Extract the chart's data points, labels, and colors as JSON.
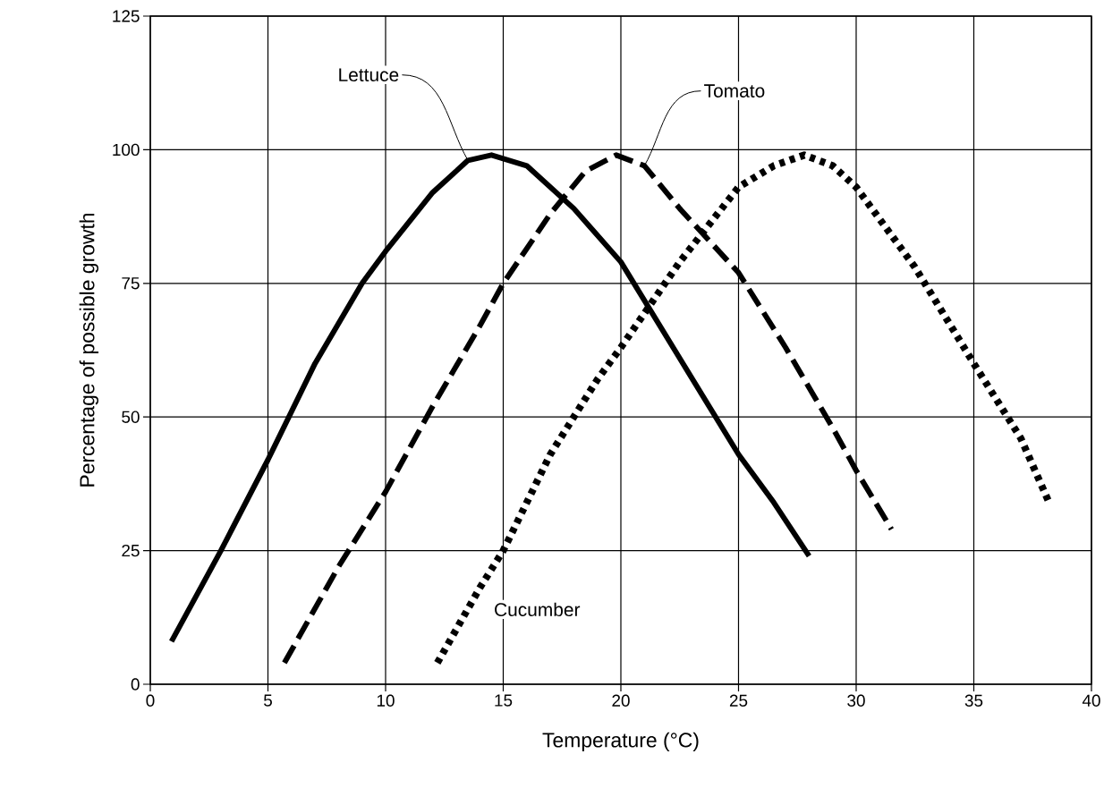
{
  "chart_data": {
    "type": "line",
    "xlabel": "Temperature (°C)",
    "ylabel": "Percentage of possible growth",
    "xlim": [
      0,
      40
    ],
    "ylim": [
      0,
      125
    ],
    "xticks": [
      0,
      5,
      10,
      15,
      20,
      25,
      30,
      35,
      40
    ],
    "yticks": [
      0,
      25,
      50,
      75,
      100,
      125
    ],
    "grid": true,
    "legend": false,
    "marker": "none",
    "series": [
      {
        "name": "Lettuce",
        "color": "#000000",
        "line_style": "solid",
        "x": [
          0.9,
          3,
          5,
          7,
          9,
          10,
          12,
          13.5,
          14.5,
          16,
          18,
          20,
          22.5,
          25,
          26.5,
          28
        ],
        "values": [
          8,
          25,
          42,
          60,
          75,
          81,
          92,
          98,
          99,
          97,
          89,
          79,
          61,
          43,
          34,
          24
        ]
      },
      {
        "name": "Tomato",
        "color": "#000000",
        "line_style": "dashed",
        "x": [
          5.7,
          8,
          10,
          12,
          14,
          15,
          17,
          18.5,
          19.8,
          21,
          22.5,
          25,
          27,
          29,
          30,
          31.5
        ],
        "values": [
          4,
          22,
          36,
          52,
          67,
          75,
          88,
          96,
          99,
          97,
          89,
          77,
          63,
          48,
          40,
          29
        ]
      },
      {
        "name": "Cucumber",
        "color": "#000000",
        "line_style": "dotted",
        "x": [
          12.2,
          14,
          15,
          17,
          19,
          20,
          22.5,
          25,
          26.5,
          27.8,
          29,
          30,
          32.5,
          35,
          37,
          38.2
        ],
        "values": [
          4,
          18,
          25,
          43,
          57,
          63,
          79,
          93,
          97,
          99,
          97,
          93,
          78,
          60,
          46,
          34
        ]
      }
    ]
  }
}
